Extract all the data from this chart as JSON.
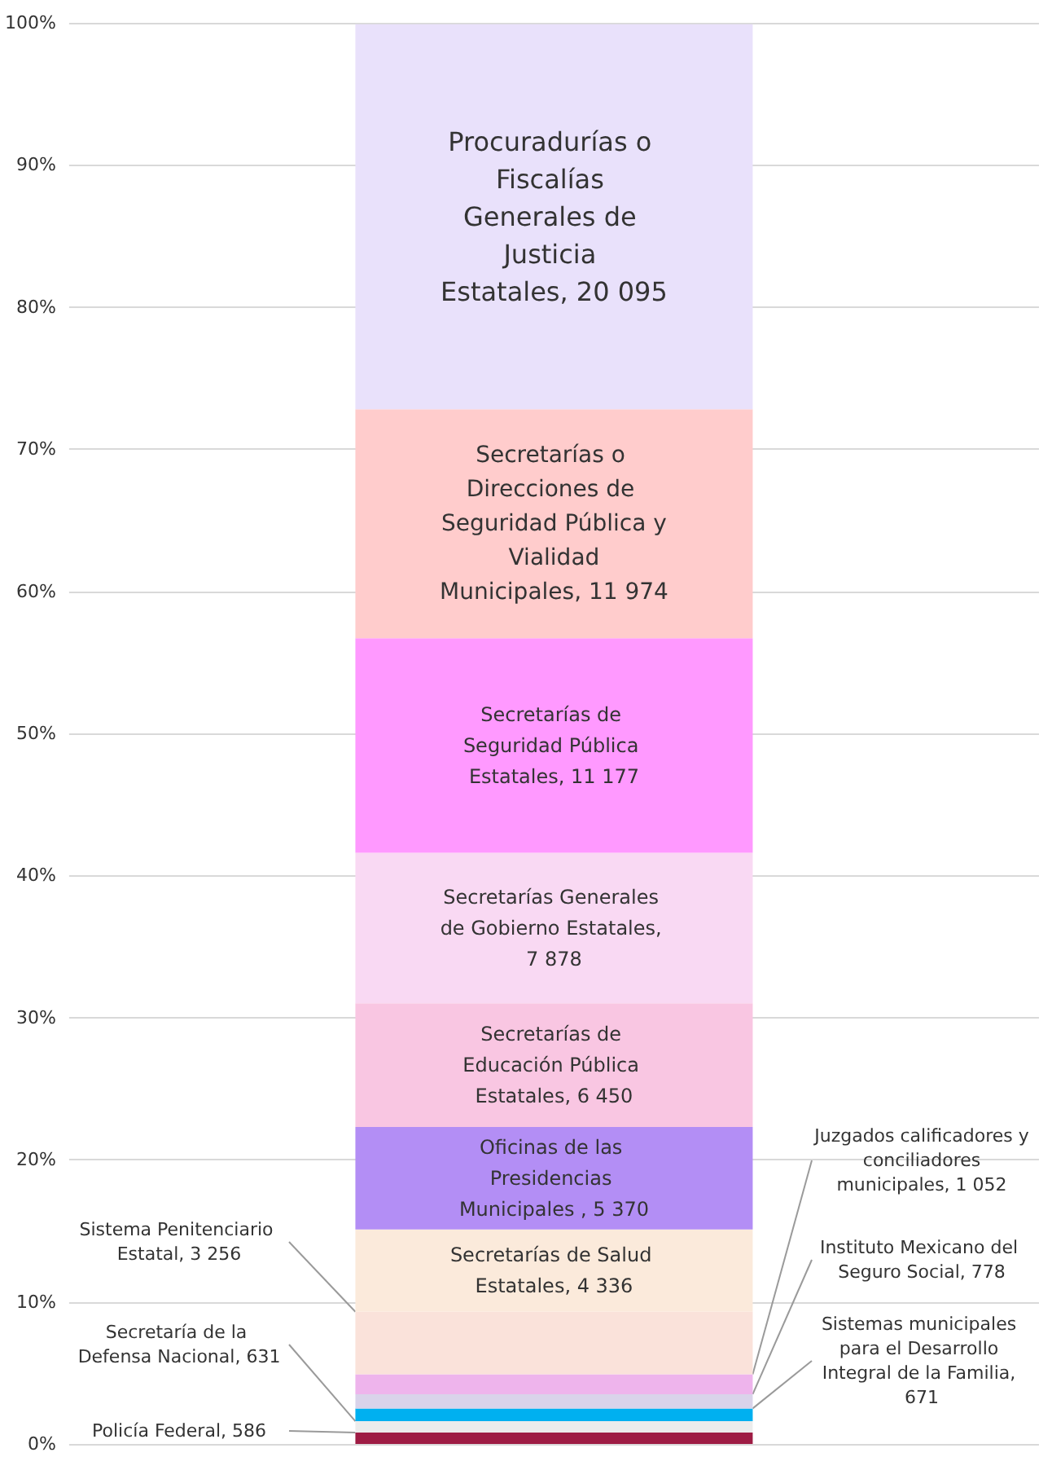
{
  "chart_data": {
    "type": "bar",
    "stacked": true,
    "categories": [
      null
    ],
    "ylim": [
      0,
      100
    ],
    "yticks": [
      {
        "value": 0,
        "label": "0%"
      },
      {
        "value": 10,
        "label": "10%"
      },
      {
        "value": 20,
        "label": "20%"
      },
      {
        "value": 30,
        "label": "30%"
      },
      {
        "value": 40,
        "label": "40%"
      },
      {
        "value": 50,
        "label": "50%"
      },
      {
        "value": 60,
        "label": "60%"
      },
      {
        "value": 70,
        "label": "70%"
      },
      {
        "value": 80,
        "label": "80%"
      },
      {
        "value": 90,
        "label": "90%"
      },
      {
        "value": 100,
        "label": "100%"
      }
    ],
    "grid": "y",
    "legend": false,
    "series": [
      {
        "name": "Policía Federal, 586",
        "color": "#9e1c44",
        "values": [
          0.8
        ]
      },
      {
        "name": "Secretaría de la Defensa Nacional, 631",
        "color": "#ececec",
        "values": [
          0.8
        ]
      },
      {
        "name": "Sistemas municipales para el Desarrollo Integral de la Familia, 671",
        "color": "#00b0f0",
        "values": [
          0.9
        ]
      },
      {
        "name": "Instituto Mexicano del Seguro Social, 778",
        "color": "#d9d3ea",
        "values": [
          1.0
        ]
      },
      {
        "name": "Juzgados calificadores y conciliadores municipales, 1 052",
        "color": "#eeb4ec",
        "values": [
          1.4
        ]
      },
      {
        "name": "Sistema Penitenciario Estatal, 3 256",
        "color": "#fae2da",
        "values": [
          4.4
        ]
      },
      {
        "name": "Secretarías de Salud Estatales, 4 336",
        "color": "#fbeadb",
        "values": [
          5.8
        ]
      },
      {
        "name": "Oficinas de las Presidencias Municipales , 5 370",
        "color": "#b38ef5",
        "values": [
          7.2
        ]
      },
      {
        "name": "Secretarías de Educación Pública Estatales, 6 450",
        "color": "#f9c6e2",
        "values": [
          8.7
        ]
      },
      {
        "name": "Secretarías Generales de Gobierno Estatales, 7 878",
        "color": "#f9d9f3",
        "values": [
          10.6
        ]
      },
      {
        "name": "Secretarías de Seguridad Pública Estatales, 11 177",
        "color": "#ff99ff",
        "values": [
          15.1
        ]
      },
      {
        "name": "Secretarías o Direcciones de Seguridad Pública y Vialidad Municipales, 11 974",
        "color": "#ffcccc",
        "values": [
          16.1
        ]
      },
      {
        "name": "Procuradurías o Fiscalías Generales de Justicia Estatales, 20 095",
        "color": "#e9e1fb",
        "values": [
          27.1
        ]
      }
    ]
  }
}
